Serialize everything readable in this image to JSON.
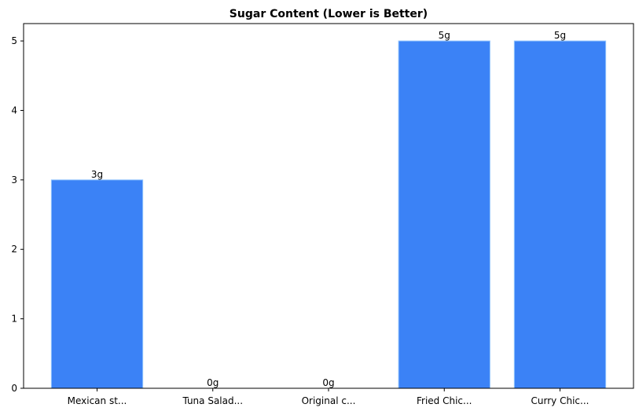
{
  "chart_data": {
    "type": "bar",
    "title": "Sugar Content (Lower is Better)",
    "categories": [
      "Mexican st...",
      "Tuna Salad...",
      "Original c...",
      "Fried Chic...",
      "Curry Chic..."
    ],
    "values": [
      3,
      0,
      0,
      5,
      5
    ],
    "value_labels": [
      "3g",
      "0g",
      "0g",
      "5g",
      "5g"
    ],
    "color": "#3b82f6",
    "ylim": [
      0,
      5.25
    ],
    "yticks": [
      0,
      1,
      2,
      3,
      4,
      5
    ],
    "grid": false
  }
}
